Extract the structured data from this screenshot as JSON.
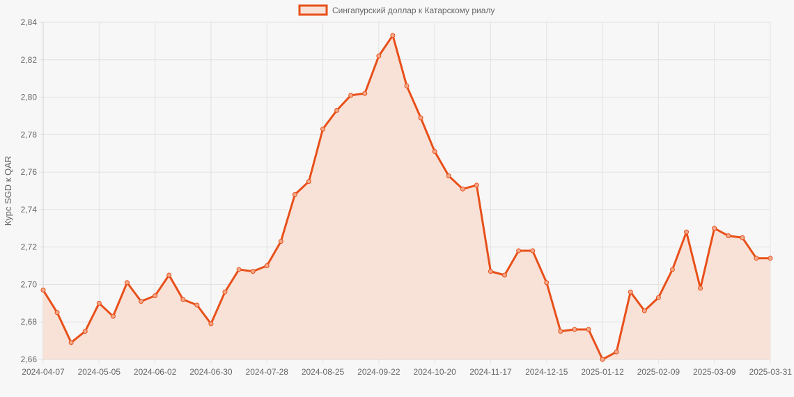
{
  "chart_data": {
    "type": "line",
    "ylabel": "Курс SGD к QAR",
    "xlabel": "",
    "ylim": [
      2.66,
      2.84
    ],
    "yticks": [
      "2,66",
      "2,68",
      "2,70",
      "2,72",
      "2,74",
      "2,76",
      "2,78",
      "2,80",
      "2,82",
      "2,84"
    ],
    "ytick_values": [
      2.66,
      2.68,
      2.7,
      2.72,
      2.74,
      2.76,
      2.78,
      2.8,
      2.82,
      2.84
    ],
    "xtick_labels": [
      "2024-04-07",
      "2024-05-05",
      "2024-06-02",
      "2024-06-30",
      "2024-07-28",
      "2024-08-25",
      "2024-09-22",
      "2024-10-20",
      "2024-11-17",
      "2024-12-15",
      "2025-01-12",
      "2025-02-09",
      "2025-03-09",
      "2025-03-31"
    ],
    "xtick_indices": [
      0,
      4,
      8,
      12,
      16,
      20,
      24,
      28,
      32,
      36,
      40,
      44,
      48,
      52
    ],
    "grid": true,
    "legend_position": "top-center",
    "x": [
      "2024-04-07",
      "2024-04-14",
      "2024-04-21",
      "2024-04-28",
      "2024-05-05",
      "2024-05-12",
      "2024-05-19",
      "2024-05-26",
      "2024-06-02",
      "2024-06-09",
      "2024-06-16",
      "2024-06-23",
      "2024-06-30",
      "2024-07-07",
      "2024-07-14",
      "2024-07-21",
      "2024-07-28",
      "2024-08-04",
      "2024-08-11",
      "2024-08-18",
      "2024-08-25",
      "2024-09-01",
      "2024-09-08",
      "2024-09-15",
      "2024-09-22",
      "2024-09-29",
      "2024-10-06",
      "2024-10-13",
      "2024-10-20",
      "2024-10-27",
      "2024-11-03",
      "2024-11-10",
      "2024-11-17",
      "2024-11-24",
      "2024-12-01",
      "2024-12-08",
      "2024-12-15",
      "2024-12-22",
      "2024-12-29",
      "2025-01-05",
      "2025-01-12",
      "2025-01-19",
      "2025-01-26",
      "2025-02-02",
      "2025-02-09",
      "2025-02-16",
      "2025-02-23",
      "2025-03-02",
      "2025-03-09",
      "2025-03-16",
      "2025-03-23",
      "2025-03-30",
      "2025-03-31"
    ],
    "series": [
      {
        "name": "Сингапурский доллар к Катарскому риалу",
        "color": "#e8501a",
        "fill": "#f8e2d8",
        "values": [
          2.697,
          2.685,
          2.669,
          2.675,
          2.69,
          2.683,
          2.701,
          2.691,
          2.694,
          2.705,
          2.692,
          2.689,
          2.679,
          2.696,
          2.708,
          2.707,
          2.71,
          2.723,
          2.748,
          2.755,
          2.783,
          2.793,
          2.801,
          2.802,
          2.822,
          2.833,
          2.806,
          2.789,
          2.771,
          2.758,
          2.751,
          2.753,
          2.707,
          2.705,
          2.718,
          2.718,
          2.701,
          2.675,
          2.676,
          2.676,
          2.66,
          2.664,
          2.696,
          2.686,
          2.693,
          2.708,
          2.728,
          2.698,
          2.73,
          2.726,
          2.725,
          2.714,
          2.714
        ]
      }
    ]
  }
}
